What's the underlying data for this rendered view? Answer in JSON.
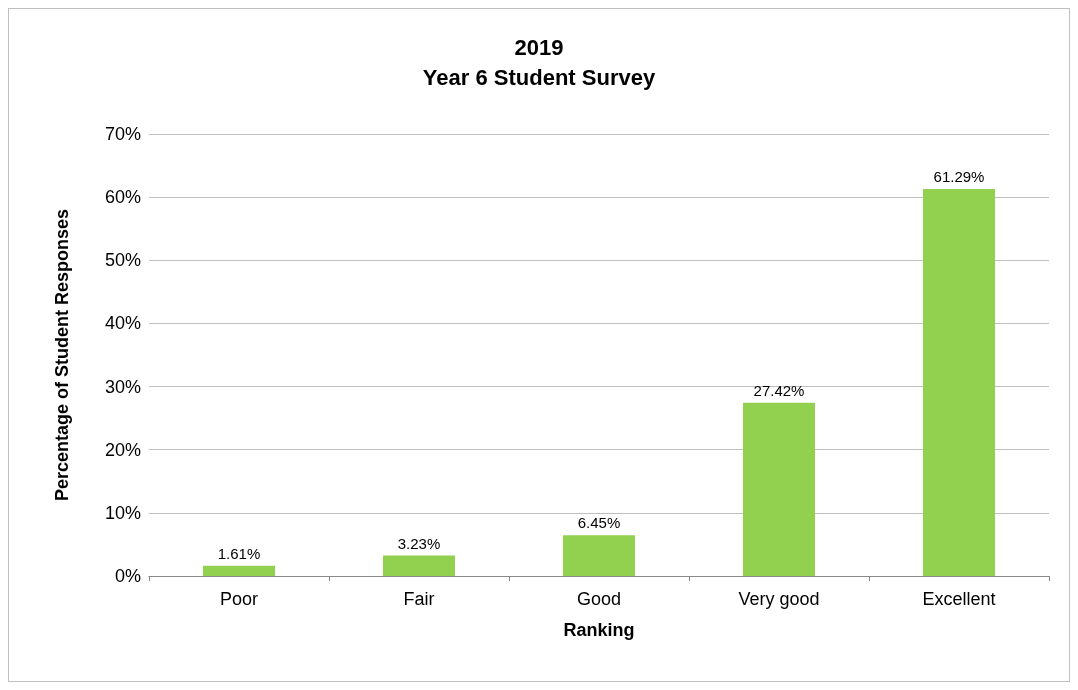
{
  "chart_data": {
    "type": "bar",
    "title": "2019",
    "subtitle": "Year 6 Student Survey",
    "xlabel": "Ranking",
    "ylabel": "Percentage of Student Responses",
    "categories": [
      "Poor",
      "Fair",
      "Good",
      "Very good",
      "Excellent"
    ],
    "values": [
      1.61,
      3.23,
      6.45,
      27.42,
      61.29
    ],
    "value_labels": [
      "1.61%",
      "3.23%",
      "6.45%",
      "27.42%",
      "61.29%"
    ],
    "color": "#92d050",
    "ylim": [
      0,
      70
    ],
    "yticks": [
      {
        "value": 0,
        "label": "0%"
      },
      {
        "value": 10,
        "label": "10%"
      },
      {
        "value": 20,
        "label": "20%"
      },
      {
        "value": 30,
        "label": "30%"
      },
      {
        "value": 40,
        "label": "40%"
      },
      {
        "value": 50,
        "label": "50%"
      },
      {
        "value": 60,
        "label": "60%"
      },
      {
        "value": 70,
        "label": "70%"
      }
    ],
    "grid": "y"
  }
}
